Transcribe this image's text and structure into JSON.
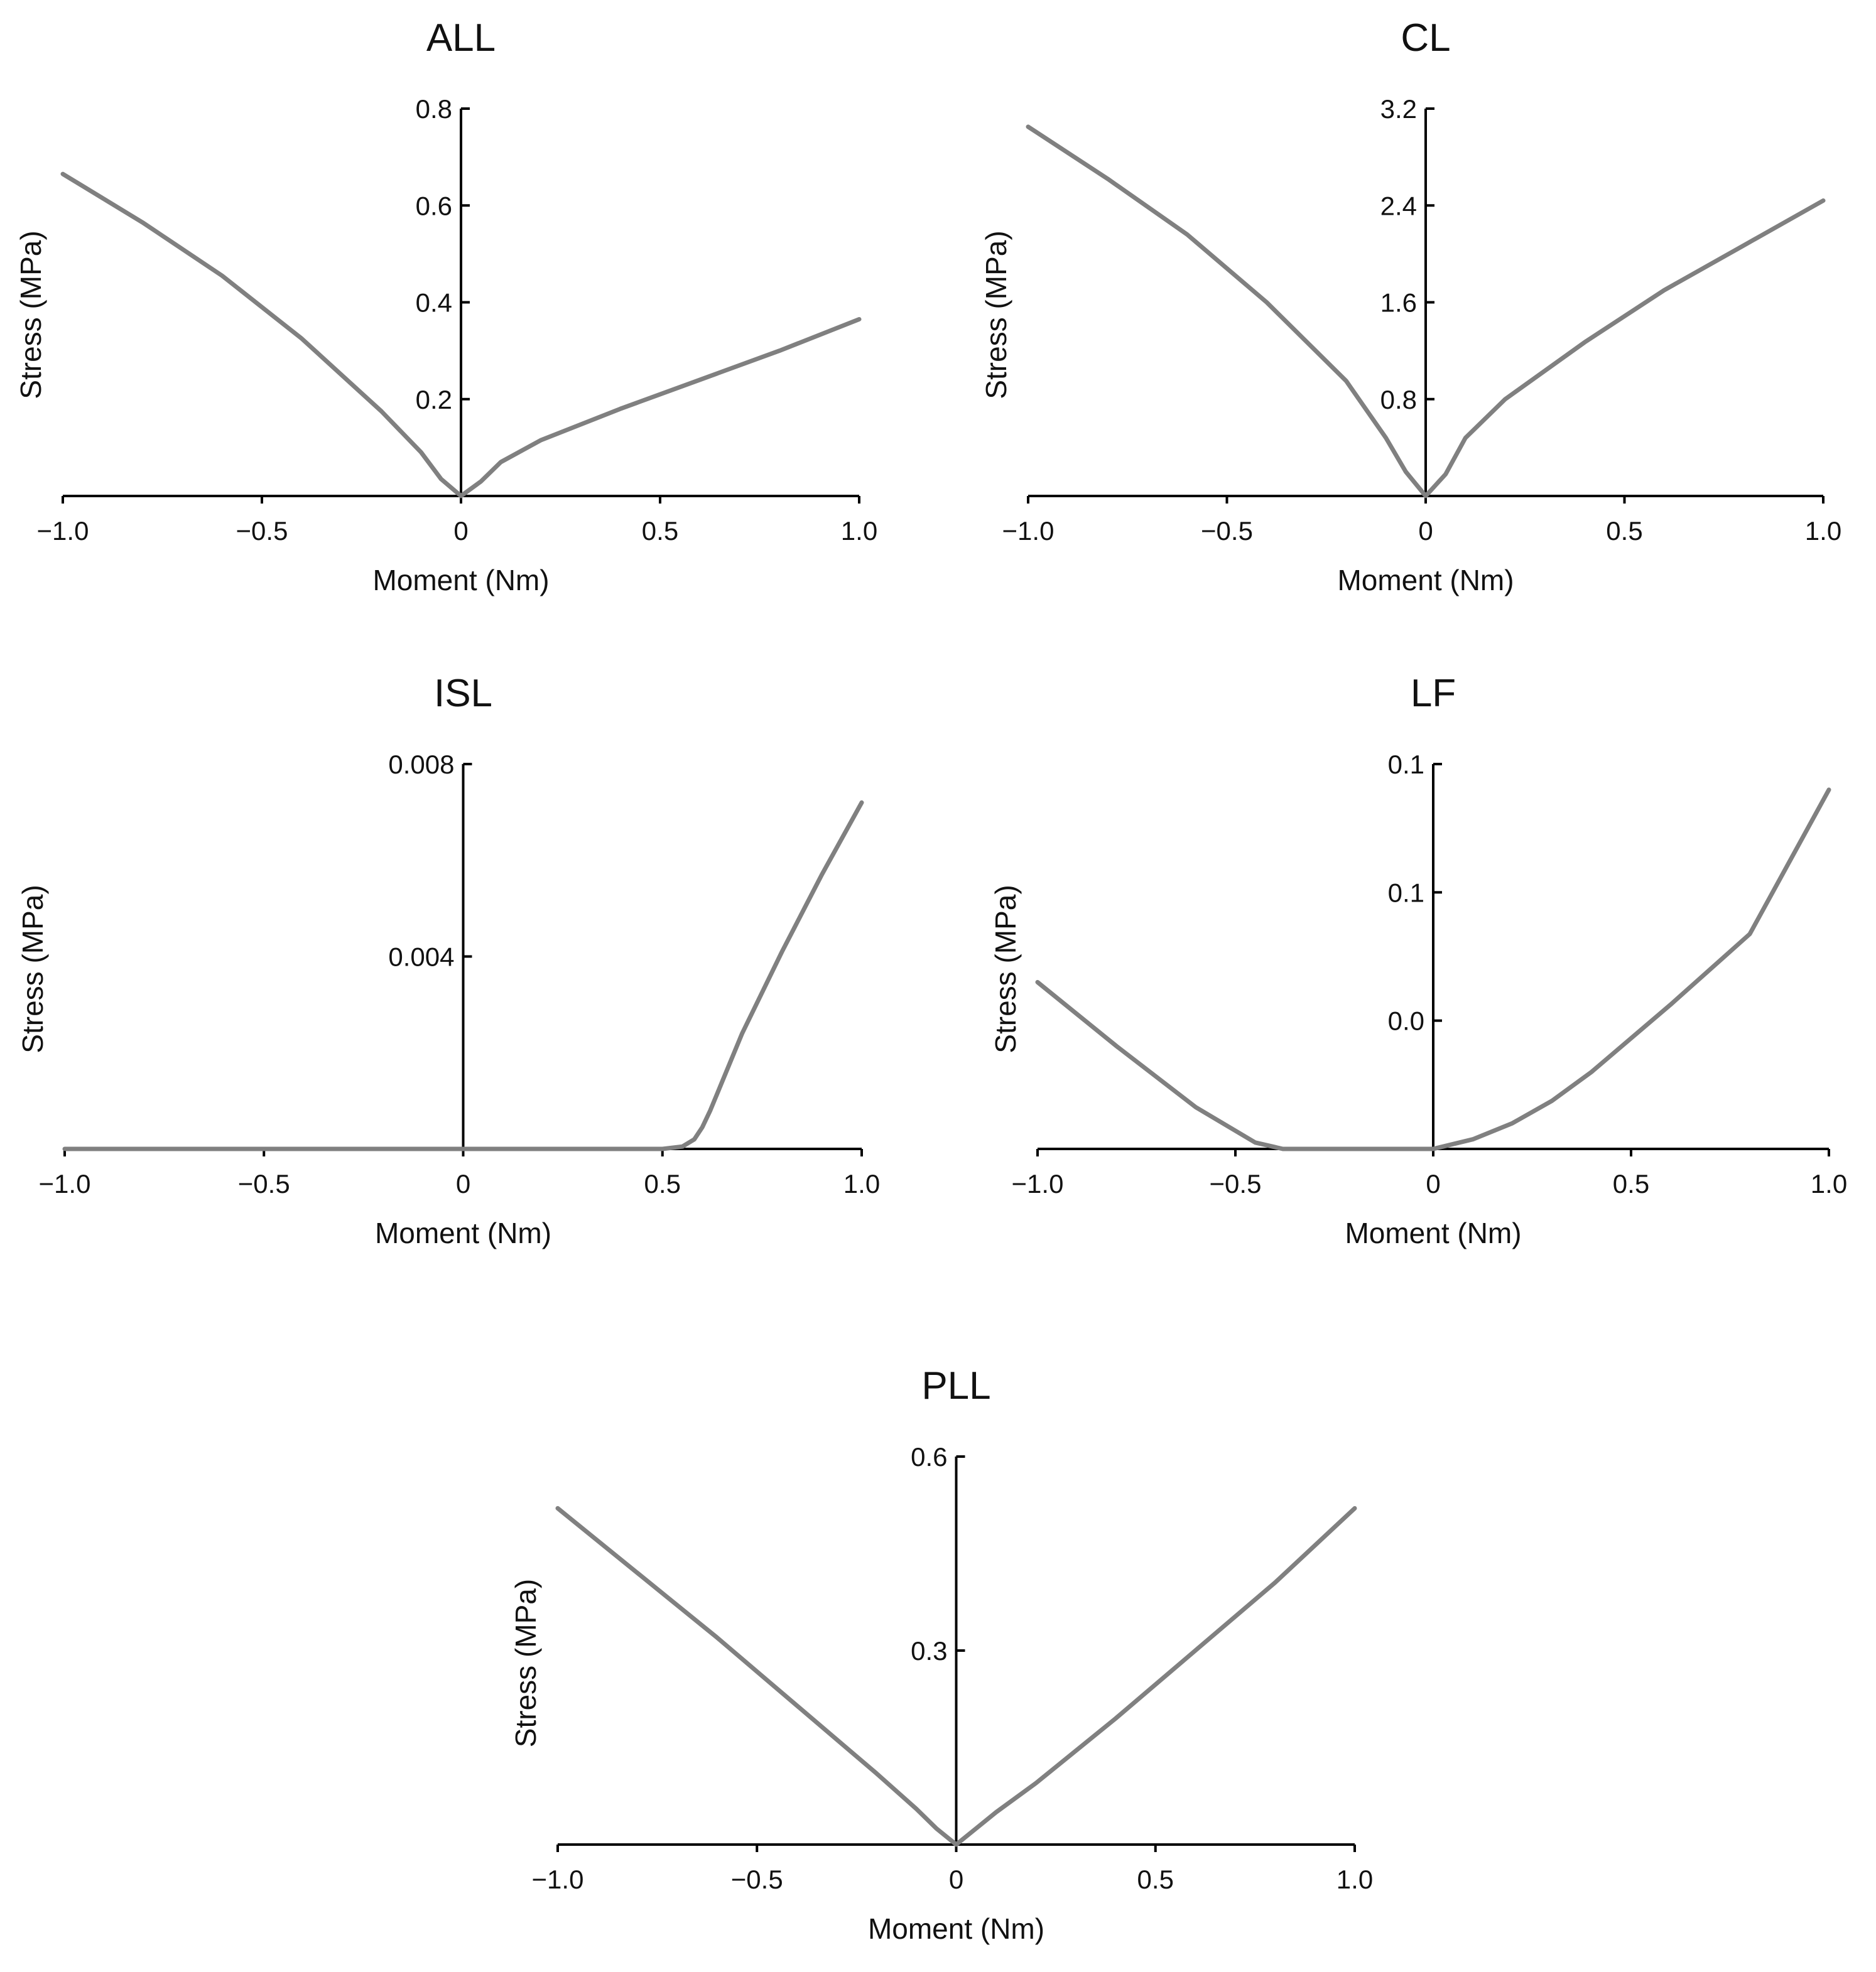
{
  "chart_data": [
    {
      "type": "line",
      "title": "ALL",
      "xlabel": "Moment (Nm)",
      "ylabel": "Stress (MPa)",
      "xlim": [
        -1.0,
        1.0
      ],
      "ylim": [
        0,
        0.8
      ],
      "xticks": [
        -1.0,
        -0.5,
        0,
        0.5,
        1.0
      ],
      "xtick_labels": [
        "−1.0",
        "−0.5",
        "0",
        "0.5",
        "1.0"
      ],
      "yticks": [
        0.2,
        0.4,
        0.6,
        0.8
      ],
      "ytick_labels": [
        "0.2",
        "0.4",
        "0.6",
        "0.8"
      ],
      "grid": false,
      "series": [
        {
          "name": "ALL",
          "x": [
            -1.0,
            -0.8,
            -0.6,
            -0.4,
            -0.2,
            -0.1,
            -0.05,
            0.0,
            0.05,
            0.1,
            0.2,
            0.4,
            0.6,
            0.8,
            1.0
          ],
          "y": [
            0.665,
            0.565,
            0.455,
            0.325,
            0.175,
            0.09,
            0.035,
            0.0,
            0.03,
            0.07,
            0.115,
            0.18,
            0.24,
            0.3,
            0.365
          ]
        }
      ]
    },
    {
      "type": "line",
      "title": "CL",
      "xlabel": "Moment (Nm)",
      "ylabel": "Stress (MPa)",
      "xlim": [
        -1.0,
        1.0
      ],
      "ylim": [
        0,
        3.2
      ],
      "xticks": [
        -1.0,
        -0.5,
        0,
        0.5,
        1.0
      ],
      "xtick_labels": [
        "−1.0",
        "−0.5",
        "0",
        "0.5",
        "1.0"
      ],
      "yticks": [
        0.8,
        1.6,
        2.4,
        3.2
      ],
      "ytick_labels": [
        "0.8",
        "1.6",
        "2.4",
        "3.2"
      ],
      "grid": false,
      "series": [
        {
          "name": "CL",
          "x": [
            -1.0,
            -0.8,
            -0.6,
            -0.4,
            -0.2,
            -0.1,
            -0.05,
            0.0,
            0.05,
            0.1,
            0.2,
            0.4,
            0.6,
            0.8,
            1.0
          ],
          "y": [
            3.05,
            2.62,
            2.16,
            1.6,
            0.95,
            0.48,
            0.2,
            0.0,
            0.18,
            0.48,
            0.8,
            1.27,
            1.7,
            2.07,
            2.44
          ]
        }
      ]
    },
    {
      "type": "line",
      "title": "ISL",
      "xlabel": "Moment (Nm)",
      "ylabel": "Stress (MPa)",
      "xlim": [
        -1.0,
        1.0
      ],
      "ylim": [
        0,
        0.008
      ],
      "xticks": [
        -1.0,
        -0.5,
        0,
        0.5,
        1.0
      ],
      "xtick_labels": [
        "−1.0",
        "−0.5",
        "0",
        "0.5",
        "1.0"
      ],
      "yticks": [
        0.004,
        0.008
      ],
      "ytick_labels": [
        "0.004",
        "0.008"
      ],
      "grid": false,
      "series": [
        {
          "name": "ISL",
          "x": [
            -1.0,
            -0.5,
            0.0,
            0.5,
            0.55,
            0.58,
            0.6,
            0.62,
            0.7,
            0.8,
            0.9,
            1.0
          ],
          "y": [
            0.0,
            0.0,
            0.0,
            0.0,
            5e-05,
            0.0002,
            0.00045,
            0.0008,
            0.0024,
            0.0041,
            0.0057,
            0.0072
          ]
        }
      ]
    },
    {
      "type": "line",
      "title": "LF",
      "xlabel": "Moment (Nm)",
      "ylabel": "Stress (MPa)",
      "xlim": [
        -1.0,
        1.0
      ],
      "ylim": [
        0,
        0.12
      ],
      "xticks": [
        -1.0,
        -0.5,
        0,
        0.5,
        1.0
      ],
      "xtick_labels": [
        "−1.0",
        "−0.5",
        "0",
        "0.5",
        "1.0"
      ],
      "yticks": [
        0.04,
        0.08,
        0.12
      ],
      "ytick_labels": [
        "0.0",
        "0.1",
        "0.1"
      ],
      "grid": false,
      "series": [
        {
          "name": "LF",
          "x": [
            -1.0,
            -0.8,
            -0.6,
            -0.45,
            -0.38,
            -0.2,
            0.0,
            0.1,
            0.2,
            0.3,
            0.4,
            0.6,
            0.8,
            1.0
          ],
          "y": [
            0.052,
            0.032,
            0.013,
            0.002,
            0.0,
            0.0,
            0.0,
            0.003,
            0.008,
            0.015,
            0.024,
            0.045,
            0.067,
            0.112
          ]
        }
      ]
    },
    {
      "type": "line",
      "title": "PLL",
      "xlabel": "Moment (Nm)",
      "ylabel": "Stress (MPa)",
      "xlim": [
        -1.0,
        1.0
      ],
      "ylim": [
        0,
        0.6
      ],
      "xticks": [
        -1.0,
        -0.5,
        0,
        0.5,
        1.0
      ],
      "xtick_labels": [
        "−1.0",
        "−0.5",
        "0",
        "0.5",
        "1.0"
      ],
      "yticks": [
        0.3,
        0.6
      ],
      "ytick_labels": [
        "0.3",
        "0.6"
      ],
      "grid": false,
      "series": [
        {
          "name": "PLL",
          "x": [
            -1.0,
            -0.8,
            -0.6,
            -0.4,
            -0.2,
            -0.1,
            -0.05,
            0.0,
            0.05,
            0.1,
            0.2,
            0.4,
            0.6,
            0.8,
            1.0
          ],
          "y": [
            0.52,
            0.42,
            0.32,
            0.215,
            0.11,
            0.055,
            0.025,
            0.0,
            0.025,
            0.05,
            0.095,
            0.195,
            0.3,
            0.405,
            0.52
          ]
        }
      ]
    }
  ]
}
